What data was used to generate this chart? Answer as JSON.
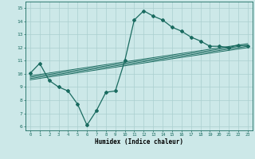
{
  "title": "",
  "xlabel": "Humidex (Indice chaleur)",
  "ylabel": "",
  "xlim": [
    -0.5,
    23.5
  ],
  "ylim": [
    5.7,
    15.5
  ],
  "xticks": [
    0,
    1,
    2,
    3,
    4,
    5,
    6,
    7,
    8,
    9,
    10,
    11,
    12,
    13,
    14,
    15,
    16,
    17,
    18,
    19,
    20,
    21,
    22,
    23
  ],
  "yticks": [
    6,
    7,
    8,
    9,
    10,
    11,
    12,
    13,
    14,
    15
  ],
  "bg_color": "#cce8e8",
  "line_color": "#1a6b60",
  "grid_color": "#aacfcf",
  "main_x": [
    0,
    1,
    2,
    3,
    4,
    5,
    6,
    7,
    8,
    9,
    10,
    11,
    12,
    13,
    14,
    15,
    16,
    17,
    18,
    19,
    20,
    21,
    22,
    23
  ],
  "main_y": [
    10.05,
    10.8,
    9.5,
    9.0,
    8.7,
    7.7,
    6.1,
    7.2,
    8.6,
    8.7,
    11.0,
    14.1,
    14.8,
    14.4,
    14.1,
    13.55,
    13.25,
    12.8,
    12.5,
    12.1,
    12.1,
    12.0,
    12.2,
    12.1
  ],
  "trend_lines": [
    {
      "x0": 0,
      "y0": 9.55,
      "x1": 23,
      "y1": 12.0
    },
    {
      "x0": 0,
      "y0": 9.65,
      "x1": 23,
      "y1": 12.1
    },
    {
      "x0": 0,
      "y0": 9.75,
      "x1": 23,
      "y1": 12.2
    },
    {
      "x0": 0,
      "y0": 9.85,
      "x1": 23,
      "y1": 12.3
    }
  ],
  "figsize": [
    3.2,
    2.0
  ],
  "dpi": 100
}
